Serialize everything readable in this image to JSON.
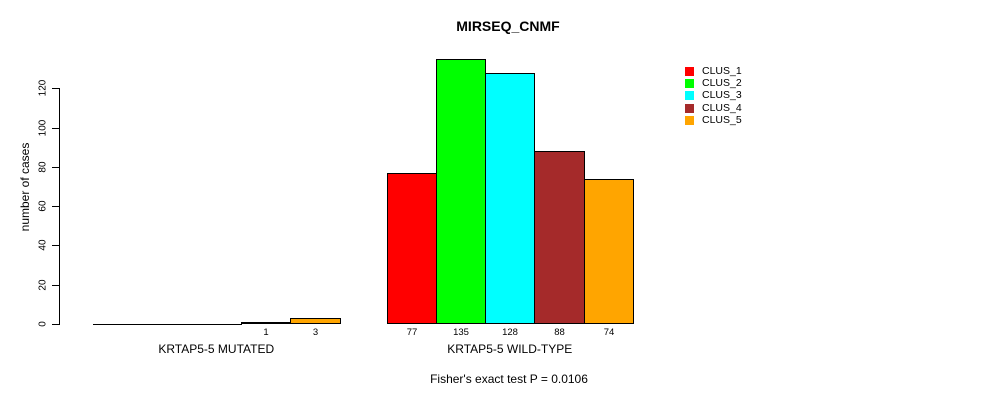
{
  "title": "MIRSEQ_CNMF",
  "y_axis": {
    "label": "number of cases",
    "ticks": [
      0,
      20,
      40,
      60,
      80,
      100,
      120
    ]
  },
  "legend": {
    "items": [
      {
        "label": "CLUS_1",
        "color": "#FF0000"
      },
      {
        "label": "CLUS_2",
        "color": "#00FF00"
      },
      {
        "label": "CLUS_3",
        "color": "#00FFFF"
      },
      {
        "label": "CLUS_4",
        "color": "#A52A2A"
      },
      {
        "label": "CLUS_5",
        "color": "#FFA500"
      }
    ]
  },
  "footer": "Fisher's exact test P = 0.0106",
  "chart_data": {
    "type": "bar",
    "title": "MIRSEQ_CNMF",
    "xlabel": "",
    "ylabel": "number of cases",
    "ylim": [
      0,
      135
    ],
    "yticks": [
      0,
      20,
      40,
      60,
      80,
      100,
      120
    ],
    "grid": false,
    "legend_position": "top-right",
    "series_names": [
      "CLUS_1",
      "CLUS_2",
      "CLUS_3",
      "CLUS_4",
      "CLUS_5"
    ],
    "colors": [
      "#FF0000",
      "#00FF00",
      "#00FFFF",
      "#A52A2A",
      "#FFA500"
    ],
    "groups": [
      {
        "label": "KRTAP5-5 MUTATED",
        "values": [
          0,
          0,
          0,
          1,
          3
        ]
      },
      {
        "label": "KRTAP5-5 WILD-TYPE",
        "values": [
          77,
          135,
          128,
          88,
          74
        ]
      }
    ],
    "bar_value_labels_shown": [
      1,
      3,
      77,
      135,
      128,
      88,
      74
    ],
    "annotation": "Fisher's exact test P = 0.0106"
  }
}
